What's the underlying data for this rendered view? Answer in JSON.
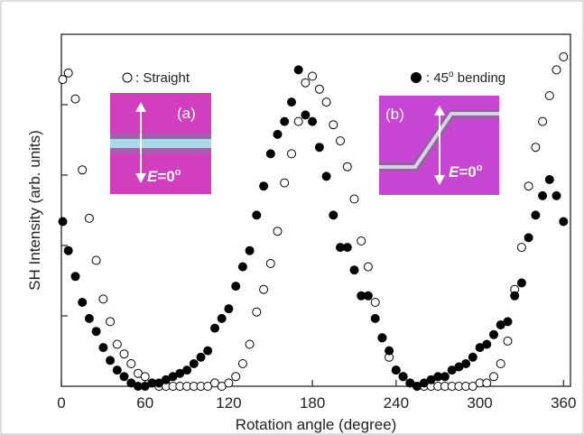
{
  "chart_data": {
    "type": "scatter",
    "xlabel": "Rotation angle (degree)",
    "ylabel": "SH Intensity (arb. units)",
    "xlim": [
      0,
      365
    ],
    "ylim": [
      0,
      1.09
    ],
    "x_ticks": [
      0,
      60,
      120,
      180,
      240,
      300,
      360
    ],
    "y_ticks_shown_without_labels": true,
    "grid": false,
    "legend": "top",
    "series": [
      {
        "name": ": Straight",
        "marker": "open-circle",
        "color": "#000000",
        "points": [
          [
            1,
            0.95
          ],
          [
            5,
            0.97
          ],
          [
            10,
            0.89
          ],
          [
            15,
            0.67
          ],
          [
            20,
            0.52
          ],
          [
            25,
            0.39
          ],
          [
            30,
            0.27
          ],
          [
            35,
            0.2
          ],
          [
            40,
            0.13
          ],
          [
            45,
            0.1
          ],
          [
            50,
            0.07
          ],
          [
            55,
            0.04
          ],
          [
            60,
            0.03
          ],
          [
            65,
            0.01
          ],
          [
            70,
            0.0
          ],
          [
            75,
            0.0
          ],
          [
            80,
            0.0
          ],
          [
            85,
            0.0
          ],
          [
            90,
            0.0
          ],
          [
            95,
            0.0
          ],
          [
            100,
            0.0
          ],
          [
            105,
            0.0
          ],
          [
            110,
            0.01
          ],
          [
            115,
            0.0
          ],
          [
            120,
            0.01
          ],
          [
            125,
            0.03
          ],
          [
            130,
            0.07
          ],
          [
            135,
            0.13
          ],
          [
            140,
            0.23
          ],
          [
            145,
            0.3
          ],
          [
            150,
            0.38
          ],
          [
            155,
            0.48
          ],
          [
            160,
            0.63
          ],
          [
            165,
            0.72
          ],
          [
            170,
            0.82
          ],
          [
            175,
            0.94
          ],
          [
            180,
            0.96
          ],
          [
            185,
            0.92
          ],
          [
            190,
            0.88
          ],
          [
            195,
            0.81
          ],
          [
            200,
            0.76
          ],
          [
            205,
            0.68
          ],
          [
            210,
            0.58
          ],
          [
            215,
            0.45
          ],
          [
            220,
            0.37
          ],
          [
            225,
            0.26
          ],
          [
            230,
            0.15
          ],
          [
            235,
            0.09
          ],
          [
            240,
            0.05
          ],
          [
            245,
            0.03
          ],
          [
            250,
            0.01
          ],
          [
            255,
            0.0
          ],
          [
            260,
            0.0
          ],
          [
            265,
            0.0
          ],
          [
            270,
            0.0
          ],
          [
            275,
            0.0
          ],
          [
            280,
            0.0
          ],
          [
            285,
            0.0
          ],
          [
            290,
            0.0
          ],
          [
            295,
            0.0
          ],
          [
            300,
            0.01
          ],
          [
            305,
            0.01
          ],
          [
            310,
            0.03
          ],
          [
            315,
            0.07
          ],
          [
            320,
            0.14
          ],
          [
            325,
            0.3
          ],
          [
            330,
            0.43
          ],
          [
            335,
            0.62
          ],
          [
            340,
            0.74
          ],
          [
            345,
            0.82
          ],
          [
            350,
            0.9
          ],
          [
            355,
            0.98
          ],
          [
            360,
            1.02
          ]
        ]
      },
      {
        "name": ": 45o bending",
        "marker": "filled-circle",
        "color": "#000000",
        "points": [
          [
            1,
            0.51
          ],
          [
            5,
            0.42
          ],
          [
            10,
            0.34
          ],
          [
            15,
            0.26
          ],
          [
            20,
            0.21
          ],
          [
            25,
            0.17
          ],
          [
            30,
            0.12
          ],
          [
            35,
            0.08
          ],
          [
            40,
            0.05
          ],
          [
            45,
            0.03
          ],
          [
            50,
            0.01
          ],
          [
            55,
            0.0
          ],
          [
            60,
            0.0
          ],
          [
            65,
            0.01
          ],
          [
            70,
            0.01
          ],
          [
            75,
            0.02
          ],
          [
            80,
            0.03
          ],
          [
            85,
            0.04
          ],
          [
            90,
            0.05
          ],
          [
            95,
            0.07
          ],
          [
            100,
            0.09
          ],
          [
            105,
            0.11
          ],
          [
            110,
            0.18
          ],
          [
            115,
            0.21
          ],
          [
            120,
            0.24
          ],
          [
            125,
            0.31
          ],
          [
            130,
            0.37
          ],
          [
            135,
            0.42
          ],
          [
            140,
            0.53
          ],
          [
            145,
            0.62
          ],
          [
            150,
            0.72
          ],
          [
            155,
            0.78
          ],
          [
            160,
            0.82
          ],
          [
            165,
            0.88
          ],
          [
            170,
            0.98
          ],
          [
            175,
            0.84
          ],
          [
            180,
            0.82
          ],
          [
            185,
            0.74
          ],
          [
            190,
            0.65
          ],
          [
            195,
            0.53
          ],
          [
            200,
            0.43
          ],
          [
            205,
            0.43
          ],
          [
            210,
            0.36
          ],
          [
            215,
            0.28
          ],
          [
            220,
            0.28
          ],
          [
            225,
            0.21
          ],
          [
            230,
            0.15
          ],
          [
            235,
            0.11
          ],
          [
            240,
            0.05
          ],
          [
            245,
            0.03
          ],
          [
            250,
            0.01
          ],
          [
            255,
            0.0
          ],
          [
            260,
            0.01
          ],
          [
            265,
            0.02
          ],
          [
            270,
            0.03
          ],
          [
            275,
            0.03
          ],
          [
            280,
            0.05
          ],
          [
            285,
            0.06
          ],
          [
            290,
            0.07
          ],
          [
            295,
            0.09
          ],
          [
            300,
            0.12
          ],
          [
            305,
            0.13
          ],
          [
            310,
            0.16
          ],
          [
            315,
            0.19
          ],
          [
            320,
            0.2
          ],
          [
            325,
            0.28
          ],
          [
            330,
            0.32
          ],
          [
            335,
            0.46
          ],
          [
            340,
            0.53
          ],
          [
            345,
            0.59
          ],
          [
            350,
            0.64
          ],
          [
            355,
            0.59
          ],
          [
            360,
            0.51
          ]
        ]
      }
    ],
    "legend_entries": {
      "straight": ": Straight",
      "bending_text": ": 45",
      "bending_superscript": "o",
      "bending_suffix": " bending"
    },
    "insets": [
      {
        "label": "(a)",
        "field_symbol": "E",
        "field_value": "=0",
        "field_superscript": "o",
        "background_color": "#d13fbf",
        "waveguide": "straight"
      },
      {
        "label": "(b)",
        "field_symbol": "E",
        "field_value": "=0",
        "field_superscript": "o",
        "background_color": "#c846d4",
        "waveguide": "45-degree-bend"
      }
    ]
  }
}
